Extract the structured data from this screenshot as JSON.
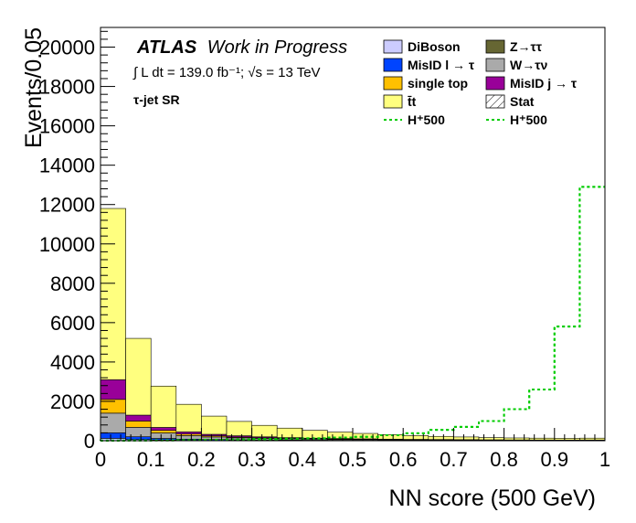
{
  "chart_data": {
    "type": "bar",
    "stacked": true,
    "xlabel": "NN score (500 GeV)",
    "ylabel": "Events/0.05",
    "xlim": [
      0,
      1
    ],
    "ylim": [
      0,
      21000
    ],
    "x_ticks": [
      "0",
      "0.1",
      "0.2",
      "0.3",
      "0.4",
      "0.5",
      "0.6",
      "0.7",
      "0.8",
      "0.9",
      "1"
    ],
    "y_ticks": [
      "0",
      "2000",
      "4000",
      "6000",
      "8000",
      "10000",
      "12000",
      "14000",
      "16000",
      "18000",
      "20000"
    ],
    "bin_edges": [
      0,
      0.05,
      0.1,
      0.15,
      0.2,
      0.25,
      0.3,
      0.35,
      0.4,
      0.45,
      0.5,
      0.55,
      0.6,
      0.65,
      0.7,
      0.75,
      0.8,
      0.85,
      0.9,
      0.95,
      1.0
    ],
    "series": [
      {
        "name": "DiBoson",
        "color": "#ccccff",
        "values": [
          120,
          60,
          35,
          25,
          18,
          14,
          12,
          10,
          9,
          8,
          7,
          6,
          5,
          5,
          4,
          4,
          3,
          3,
          3,
          3
        ]
      },
      {
        "name": "MisID l → τ",
        "color": "#0044ff",
        "values": [
          280,
          140,
          80,
          55,
          42,
          32,
          27,
          22,
          18,
          15,
          13,
          11,
          9,
          8,
          7,
          6,
          5,
          5,
          5,
          5
        ]
      },
      {
        "name": "W→τν",
        "color": "#aaaaaa",
        "values": [
          1000,
          480,
          280,
          180,
          130,
          100,
          78,
          62,
          50,
          42,
          36,
          30,
          26,
          22,
          19,
          16,
          14,
          12,
          11,
          12
        ]
      },
      {
        "name": "single top",
        "color": "#ffc000",
        "values": [
          700,
          320,
          130,
          80,
          55,
          40,
          30,
          24,
          20,
          17,
          15,
          13,
          11,
          10,
          9,
          8,
          7,
          7,
          6,
          7
        ]
      },
      {
        "name": "MisID j → τ",
        "color": "#990099",
        "values": [
          1000,
          300,
          150,
          110,
          80,
          65,
          50,
          40,
          33,
          28,
          24,
          20,
          17,
          15,
          14,
          12,
          11,
          10,
          9,
          10
        ]
      },
      {
        "name": "t̄t",
        "color": "#ffff7f",
        "values": [
          8700,
          3900,
          2100,
          1400,
          925,
          729,
          583,
          482,
          400,
          330,
          275,
          230,
          192,
          160,
          137,
          114,
          100,
          93,
          86,
          93
        ]
      },
      {
        "name": "Z→ττ",
        "color": "#666633",
        "values": [
          0,
          0,
          0,
          0,
          0,
          0,
          0,
          0,
          0,
          0,
          0,
          0,
          0,
          0,
          0,
          0,
          0,
          0,
          0,
          0
        ]
      }
    ],
    "signal": [
      {
        "name": "H⁺500",
        "color": "#00cc00",
        "style": "dotted",
        "values": [
          5,
          10,
          20,
          30,
          40,
          60,
          80,
          100,
          120,
          160,
          200,
          280,
          380,
          550,
          700,
          1000,
          1600,
          2600,
          5800,
          12900
        ]
      },
      {
        "name": "H⁺500",
        "color": "#00cc00",
        "style": "dotted",
        "values": [
          5,
          10,
          20,
          30,
          40,
          60,
          80,
          100,
          120,
          160,
          200,
          280,
          380,
          550,
          700,
          1000,
          1600,
          2600,
          5800,
          12900
        ]
      }
    ],
    "stat_label": "Stat",
    "annotations": {
      "atlas": "ATLAS",
      "atlas_suffix": "Work in Progress",
      "lumi": "∫ L dt = 139.0 fb⁻¹;  √s = 13 TeV",
      "region": "τ-jet SR"
    },
    "legend": {
      "placement": "top-right",
      "columns": [
        [
          "DiBoson",
          "MisID l → τ",
          "single top",
          "t̄t",
          "H⁺500"
        ],
        [
          "Z→ττ",
          "W→τν",
          "MisID j → τ",
          "Stat",
          "H⁺500"
        ]
      ]
    },
    "grid": false
  }
}
